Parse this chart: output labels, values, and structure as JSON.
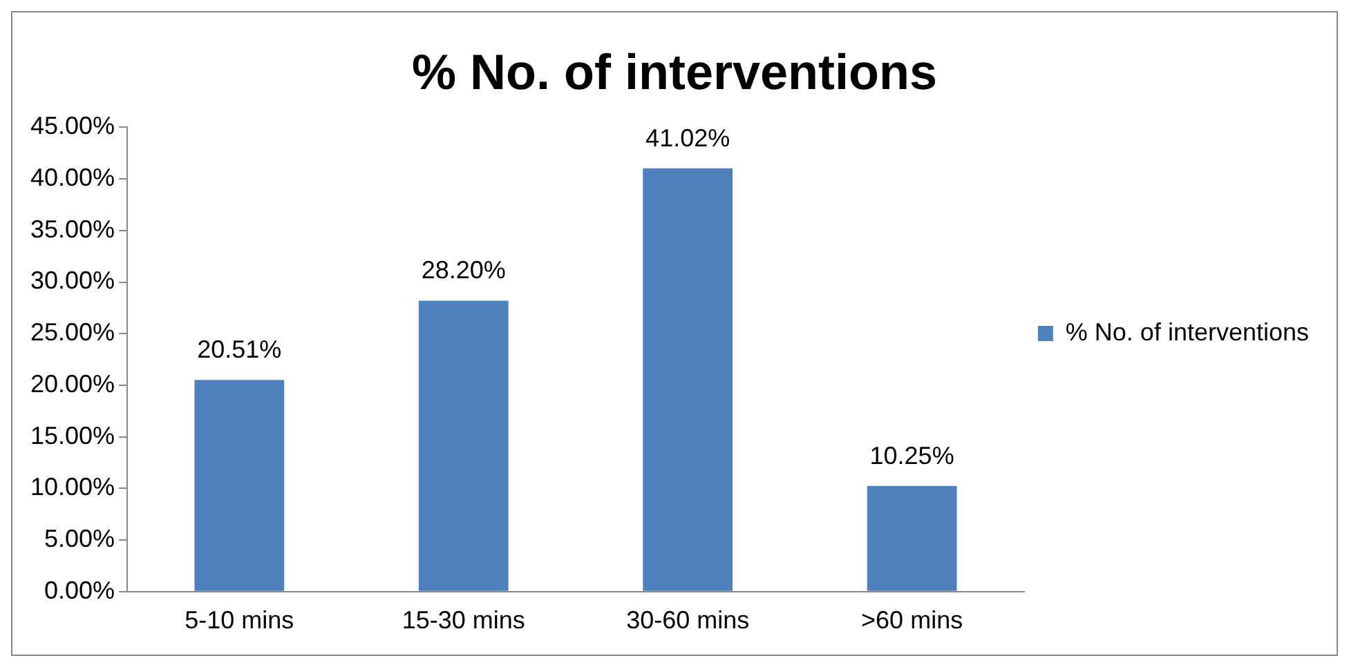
{
  "chart_data": {
    "type": "bar",
    "title": "% No. of interventions",
    "categories": [
      "5-10 mins",
      "15-30 mins",
      "30-60 mins",
      ">60 mins"
    ],
    "series": [
      {
        "name": "% No. of interventions",
        "color": "#4f81bd",
        "values": [
          20.51,
          28.2,
          41.02,
          10.25
        ],
        "value_labels": [
          "20.51%",
          "28.20%",
          "41.02%",
          "10.25%"
        ]
      }
    ],
    "ylim": [
      0,
      45
    ],
    "yticks": [
      {
        "value": 0,
        "label": "0.00%"
      },
      {
        "value": 5,
        "label": "5.00%"
      },
      {
        "value": 10,
        "label": "10.00%"
      },
      {
        "value": 15,
        "label": "15.00%"
      },
      {
        "value": 20,
        "label": "20.00%"
      },
      {
        "value": 25,
        "label": "25.00%"
      },
      {
        "value": 30,
        "label": "30.00%"
      },
      {
        "value": 35,
        "label": "35.00%"
      },
      {
        "value": 40,
        "label": "40.00%"
      },
      {
        "value": 45,
        "label": "45.00%"
      }
    ],
    "grid": false,
    "legend": "right"
  }
}
